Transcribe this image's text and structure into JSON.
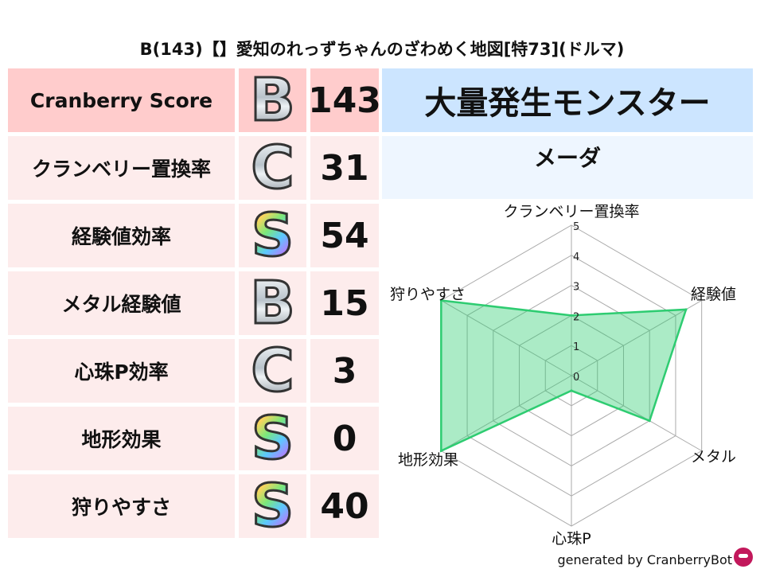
{
  "title": "B(143)【】愛知のれっずちゃんのざわめく地図[特73](ドルマ)",
  "rows": [
    {
      "label": "Cranberry Score",
      "grade": "B",
      "value": "143"
    },
    {
      "label": "クランベリー置換率",
      "grade": "C",
      "value": "31"
    },
    {
      "label": "経験値効率",
      "grade": "S",
      "value": "54"
    },
    {
      "label": "メタル経験値",
      "grade": "B",
      "value": "15"
    },
    {
      "label": "心珠P効率",
      "grade": "C",
      "value": "3"
    },
    {
      "label": "地形効果",
      "grade": "S",
      "value": "0"
    },
    {
      "label": "狩りやすさ",
      "grade": "S",
      "value": "40"
    }
  ],
  "right": {
    "header": "大量発生モンスター",
    "monster": "メーダ"
  },
  "footer": "generated by CranberryBot",
  "colors": {
    "score_row": "#ffcccc",
    "rows": "#fdecec",
    "header": "#cce5ff",
    "sub": "#eef6ff",
    "series": "#2ecc71"
  },
  "chart_data": {
    "type": "radar",
    "axes": [
      "クランベリー置換率",
      "経験値",
      "メタル",
      "心珠P",
      "地形効果",
      "狩りやすさ"
    ],
    "values": [
      2,
      4.4,
      3,
      0.5,
      5,
      5
    ],
    "range": [
      0,
      5
    ],
    "ticks": [
      "0",
      "1",
      "2",
      "3",
      "4",
      "5"
    ]
  }
}
